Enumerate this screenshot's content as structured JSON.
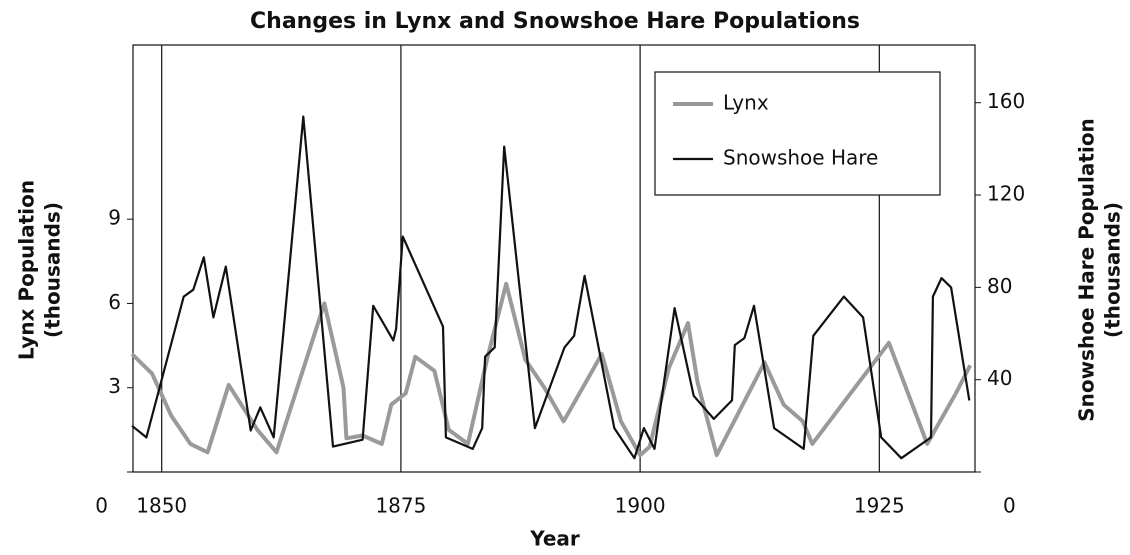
{
  "chart_data": {
    "type": "line",
    "title": "Changes in Lynx and Snowshoe Hare Populations",
    "xlabel": "Year",
    "ylabel": [
      "Lynx Population",
      "(thousands)"
    ],
    "y2label": [
      "Snowshoe Hare Population",
      "(thousands)"
    ],
    "xlim": [
      1847,
      1935
    ],
    "xticks": [
      1850,
      1875,
      1900,
      1925
    ],
    "ylim": [
      0,
      15.2
    ],
    "yticks": [
      0,
      3,
      6,
      9
    ],
    "y2lim": [
      0,
      185
    ],
    "y2ticks": [
      0,
      40,
      80,
      120,
      160
    ],
    "grid": "x",
    "legend": "upper right",
    "series": [
      {
        "name": "Lynx",
        "color": "#9a9a9a",
        "x": [
          1846.9,
          1849,
          1851,
          1853,
          1854.8,
          1857,
          1860,
          1862,
          1867,
          1869,
          1869.3,
          1871,
          1873,
          1874,
          1875.5,
          1876.5,
          1878.5,
          1880,
          1882,
          1884,
          1886,
          1888,
          1890,
          1892,
          1896,
          1898,
          1900,
          1901,
          1903,
          1905,
          1906,
          1908,
          1913,
          1915,
          1917,
          1918,
          1926,
          1930,
          1933,
          1934.5
        ],
        "values": [
          4.2,
          3.5,
          2,
          1,
          0.7,
          3.1,
          1.5,
          0.7,
          6,
          3,
          1.2,
          1.3,
          1,
          2.4,
          2.8,
          4.1,
          3.6,
          1.5,
          1,
          4,
          6.7,
          4,
          3,
          1.8,
          4.2,
          1.8,
          0.6,
          0.9,
          3.7,
          5.3,
          3.2,
          0.6,
          3.9,
          2.4,
          1.8,
          1,
          4.6,
          1,
          2.8,
          3.8
        ]
      },
      {
        "name": "Snowshoe Hare",
        "color": "#111111",
        "axis": "y2",
        "x": [
          1846.9,
          1848.4,
          1852.3,
          1853.3,
          1854.4,
          1855.4,
          1856.7,
          1859.3,
          1860.3,
          1861.7,
          1864.8,
          1867.9,
          1871.0,
          1872.1,
          1874.2,
          1874.5,
          1875.2,
          1879.4,
          1879.7,
          1882.5,
          1883.5,
          1883.8,
          1884.8,
          1885.8,
          1889.0,
          1892.1,
          1893.1,
          1894.2,
          1897.3,
          1899.4,
          1900.4,
          1901.5,
          1903.6,
          1905.6,
          1907.7,
          1909.6,
          1909.9,
          1910.9,
          1911.9,
          1914.0,
          1917.1,
          1918.1,
          1921.3,
          1923.3,
          1925.2,
          1927.3,
          1930.4,
          1930.6,
          1931.5,
          1932.5,
          1934.4
        ],
        "values": [
          20,
          15,
          76,
          79,
          93,
          67,
          89,
          18,
          28,
          15,
          154,
          11,
          14,
          72,
          57,
          62,
          102,
          63,
          15,
          10,
          19,
          50,
          54,
          141,
          19,
          54,
          59,
          85,
          19,
          6,
          19,
          10,
          71,
          33,
          23,
          31,
          55,
          58,
          72,
          19,
          10,
          59,
          76,
          67,
          15,
          6,
          15,
          76,
          84,
          80,
          31
        ]
      }
    ]
  }
}
